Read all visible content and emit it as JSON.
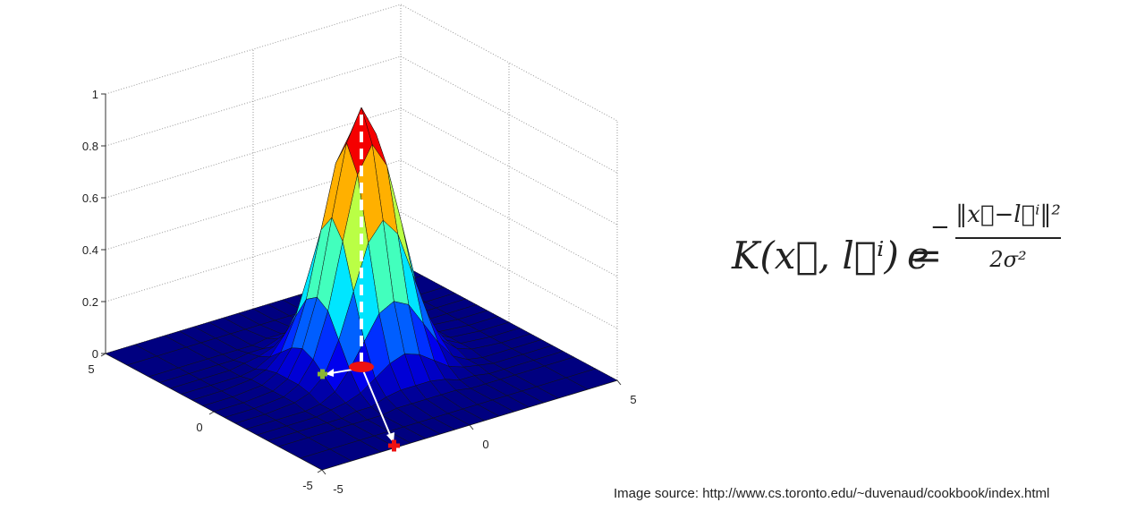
{
  "chart_data": {
    "type": "surface",
    "colormap": "jet",
    "grid": true,
    "x": [
      -5,
      -4,
      -3,
      -2.5,
      -2,
      -1.5,
      -1,
      -0.5,
      0,
      0.5,
      1,
      1.5,
      2,
      2.5,
      3,
      4,
      5
    ],
    "y": [
      -5,
      -4,
      -3,
      -2.5,
      -2,
      -1.5,
      -1,
      -0.5,
      0,
      0.5,
      1,
      1.5,
      2,
      2.5,
      3,
      4,
      5
    ],
    "z": [
      [
        0,
        0,
        0,
        0,
        0,
        0,
        0,
        0,
        0,
        0,
        0,
        0,
        0,
        0,
        0,
        0,
        0
      ],
      [
        0,
        0,
        0,
        0,
        0,
        0,
        0,
        0,
        0,
        0,
        0,
        0,
        0,
        0,
        0,
        0,
        0
      ],
      [
        0,
        0,
        0,
        0,
        0,
        0,
        0.01,
        0.01,
        0.01,
        0.01,
        0.01,
        0,
        0,
        0,
        0,
        0,
        0
      ],
      [
        0,
        0,
        0,
        0,
        0.01,
        0.01,
        0.03,
        0.04,
        0.04,
        0.04,
        0.03,
        0.01,
        0.01,
        0,
        0,
        0,
        0
      ],
      [
        0,
        0,
        0,
        0.01,
        0.02,
        0.04,
        0.08,
        0.12,
        0.14,
        0.12,
        0.08,
        0.04,
        0.02,
        0.01,
        0,
        0,
        0
      ],
      [
        0,
        0,
        0,
        0.01,
        0.04,
        0.11,
        0.2,
        0.29,
        0.32,
        0.29,
        0.2,
        0.11,
        0.04,
        0.01,
        0,
        0,
        0
      ],
      [
        0,
        0,
        0.01,
        0.03,
        0.08,
        0.2,
        0.37,
        0.54,
        0.61,
        0.54,
        0.37,
        0.2,
        0.08,
        0.03,
        0.01,
        0,
        0
      ],
      [
        0,
        0,
        0.01,
        0.04,
        0.12,
        0.29,
        0.54,
        0.78,
        0.88,
        0.78,
        0.54,
        0.29,
        0.12,
        0.04,
        0.01,
        0,
        0
      ],
      [
        0,
        0,
        0.01,
        0.04,
        0.14,
        0.32,
        0.61,
        0.88,
        1,
        0.88,
        0.61,
        0.32,
        0.14,
        0.04,
        0.01,
        0,
        0
      ],
      [
        0,
        0,
        0.01,
        0.04,
        0.12,
        0.29,
        0.54,
        0.78,
        0.88,
        0.78,
        0.54,
        0.29,
        0.12,
        0.04,
        0.01,
        0,
        0
      ],
      [
        0,
        0,
        0.01,
        0.03,
        0.08,
        0.2,
        0.37,
        0.54,
        0.61,
        0.54,
        0.37,
        0.2,
        0.08,
        0.03,
        0.01,
        0,
        0
      ],
      [
        0,
        0,
        0,
        0.01,
        0.04,
        0.11,
        0.2,
        0.29,
        0.32,
        0.29,
        0.2,
        0.11,
        0.04,
        0.01,
        0,
        0,
        0
      ],
      [
        0,
        0,
        0,
        0.01,
        0.02,
        0.04,
        0.08,
        0.12,
        0.14,
        0.12,
        0.08,
        0.04,
        0.02,
        0.01,
        0,
        0,
        0
      ],
      [
        0,
        0,
        0,
        0,
        0.01,
        0.01,
        0.03,
        0.04,
        0.04,
        0.04,
        0.03,
        0.01,
        0.01,
        0,
        0,
        0,
        0
      ],
      [
        0,
        0,
        0,
        0,
        0,
        0,
        0.01,
        0.01,
        0.01,
        0.01,
        0.01,
        0,
        0,
        0,
        0,
        0,
        0
      ],
      [
        0,
        0,
        0,
        0,
        0,
        0,
        0,
        0,
        0,
        0,
        0,
        0,
        0,
        0,
        0,
        0,
        0
      ],
      [
        0,
        0,
        0,
        0,
        0,
        0,
        0,
        0,
        0,
        0,
        0,
        0,
        0,
        0,
        0,
        0,
        0
      ]
    ],
    "xlim": [
      -5,
      5
    ],
    "ylim": [
      -5,
      5
    ],
    "zlim": [
      0,
      1
    ],
    "xticks": [
      -5,
      0,
      5
    ],
    "yticks": [
      -5,
      0,
      5
    ],
    "zticks": [
      0,
      0.2,
      0.4,
      0.6,
      0.8,
      1
    ]
  },
  "formula": {
    "lhs": "K(x⃗, l⃗ⁱ) =",
    "base": "e",
    "sign": "−",
    "numerator": "‖x⃗−l⃗ⁱ‖²",
    "denominator": "2σ²"
  },
  "source": "Image source: http://www.cs.toronto.edu/~duvenaud/cookbook/index.html"
}
